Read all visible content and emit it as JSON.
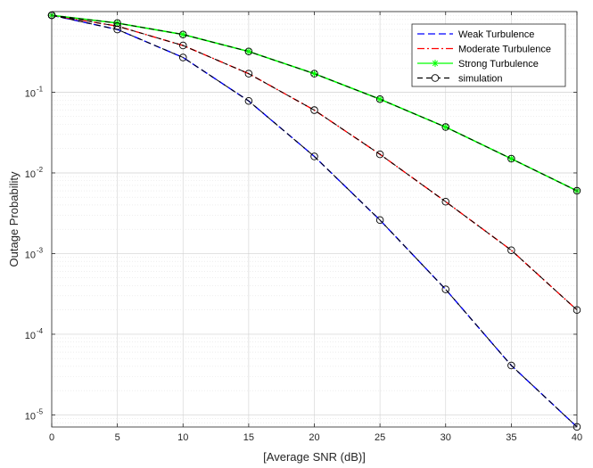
{
  "chart_data": {
    "type": "line",
    "title": "",
    "xlabel": "[Average SNR (dB)]",
    "ylabel": "Outage Probability",
    "xlim": [
      0,
      40
    ],
    "ylim_log10": [
      -5.15,
      0
    ],
    "yscale": "log",
    "grid": true,
    "legend_position": "top-right",
    "x": [
      0,
      5,
      10,
      15,
      20,
      25,
      30,
      35,
      40
    ],
    "x_ticks": [
      "0",
      "5",
      "10",
      "15",
      "20",
      "25",
      "30",
      "35",
      "40"
    ],
    "y_ticks": [
      {
        "exp": -1,
        "label": "10",
        "sup": "-1"
      },
      {
        "exp": -2,
        "label": "10",
        "sup": "-2"
      },
      {
        "exp": -3,
        "label": "10",
        "sup": "-3"
      },
      {
        "exp": -4,
        "label": "10",
        "sup": "-4"
      },
      {
        "exp": -5,
        "label": "10",
        "sup": "-5"
      }
    ],
    "series": [
      {
        "name": "Weak Turbulence",
        "color": "#0000ff",
        "dash": "8,4",
        "marker": "none",
        "values": [
          0.9,
          0.6,
          0.27,
          0.078,
          0.016,
          0.0026,
          0.00036,
          4.1e-05,
          7.1e-06
        ]
      },
      {
        "name": "Moderate Turbulence",
        "color": "#ff0000",
        "dash": "8,3,2,3",
        "marker": "none",
        "values": [
          0.9,
          0.66,
          0.38,
          0.17,
          0.06,
          0.017,
          0.0044,
          0.0011,
          0.0002
        ]
      },
      {
        "name": "Strong Turbulence",
        "color": "#00ff00",
        "dash": "",
        "marker": "asterisk",
        "values": [
          0.9,
          0.72,
          0.52,
          0.32,
          0.17,
          0.082,
          0.037,
          0.015,
          0.006
        ]
      },
      {
        "name": "simulation",
        "color": "#000000",
        "dash": "6,4",
        "marker": "circle",
        "values_sets": [
          [
            0.9,
            0.6,
            0.27,
            0.078,
            0.016,
            0.0026,
            0.00036,
            4.1e-05,
            7.1e-06
          ],
          [
            0.9,
            0.66,
            0.38,
            0.17,
            0.06,
            0.017,
            0.0044,
            0.0011,
            0.0002
          ],
          [
            0.9,
            0.72,
            0.52,
            0.32,
            0.17,
            0.082,
            0.037,
            0.015,
            0.006
          ]
        ]
      }
    ]
  }
}
